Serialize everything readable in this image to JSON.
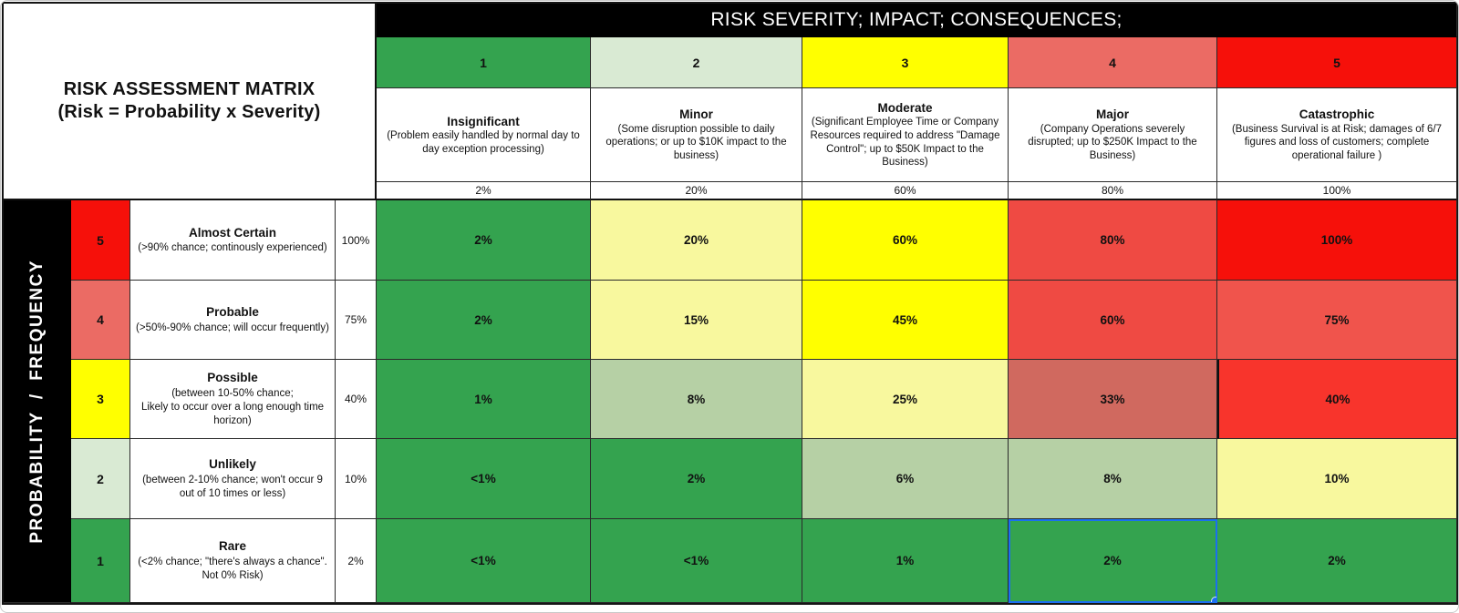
{
  "sheet": {
    "title_line1": "RISK ASSESSMENT MATRIX",
    "title_line2": "(Risk = Probability x Severity)",
    "severity_banner": "RISK SEVERITY; IMPACT; CONSEQUENCES;",
    "probability_banner": "PROBABILITY  /  FREQUENCY"
  },
  "colors": {
    "green": "#34a34f",
    "pale_green": "#d9ead3",
    "muted_green": "#b6d0a5",
    "light_yellow": "#f8f89e",
    "yellow": "#ffff00",
    "salmon": "#eb6b64",
    "medium_red": "#ef4a43",
    "dusty_red": "#d0695f",
    "bright_red": "#f6100a",
    "selection_blue": "#1b6ff0",
    "banner_black": "#000000"
  },
  "severity_columns": [
    {
      "number": "1",
      "header_color": "#34a34f",
      "name": "Insignificant",
      "description": "(Problem easily handled by normal day to day exception processing)",
      "percent": "2%"
    },
    {
      "number": "2",
      "header_color": "#d9ead3",
      "name": "Minor",
      "description": "(Some disruption possible to daily operations;  or up to $10K impact to the business)",
      "percent": "20%"
    },
    {
      "number": "3",
      "header_color": "#ffff00",
      "name": "Moderate",
      "description": "(Significant Employee Time or Company Resources required to address \"Damage Control\";  up to $50K Impact to the Business)",
      "percent": "60%"
    },
    {
      "number": "4",
      "header_color": "#eb6b64",
      "name": "Major",
      "description": "(Company Operations severely disrupted;  up to $250K Impact to the Business)",
      "percent": "80%"
    },
    {
      "number": "5",
      "header_color": "#f6100a",
      "name": "Catastrophic",
      "description": "(Business Survival is at Risk; damages of 6/7 figures and loss of customers;  complete operational failure )",
      "percent": "100%"
    }
  ],
  "probability_rows": [
    {
      "number": "5",
      "header_color": "#f6100a",
      "name": "Almost Certain",
      "description": "(>90% chance; continously experienced)",
      "percent": "100%",
      "cells": [
        {
          "value": "2%",
          "bg": "#34a34f"
        },
        {
          "value": "20%",
          "bg": "#f8f89e"
        },
        {
          "value": "60%",
          "bg": "#ffff00"
        },
        {
          "value": "80%",
          "bg": "#ef4a43"
        },
        {
          "value": "100%",
          "bg": "#f6100a"
        }
      ]
    },
    {
      "number": "4",
      "header_color": "#eb6b64",
      "name": "Probable",
      "description": "(>50%-90% chance; will occur frequently)",
      "percent": "75%",
      "cells": [
        {
          "value": "2%",
          "bg": "#34a34f"
        },
        {
          "value": "15%",
          "bg": "#f8f89e"
        },
        {
          "value": "45%",
          "bg": "#ffff00"
        },
        {
          "value": "60%",
          "bg": "#ef4a43"
        },
        {
          "value": "75%",
          "bg": "#f0544c"
        }
      ]
    },
    {
      "number": "3",
      "header_color": "#ffff00",
      "name": "Possible",
      "description": "(between 10-50% chance;\nLikely to occur over a long enough time horizon)",
      "percent": "40%",
      "cells": [
        {
          "value": "1%",
          "bg": "#34a34f"
        },
        {
          "value": "8%",
          "bg": "#b6d0a5"
        },
        {
          "value": "25%",
          "bg": "#f8f89e"
        },
        {
          "value": "33%",
          "bg": "#d0695f"
        },
        {
          "value": "40%",
          "bg": "#f8342c"
        }
      ]
    },
    {
      "number": "2",
      "header_color": "#d9ead3",
      "name": "Unlikely",
      "description": "(between 2-10% chance; won't occur 9 out of 10 times or less)",
      "percent": "10%",
      "cells": [
        {
          "value": "<1%",
          "bg": "#34a34f"
        },
        {
          "value": "2%",
          "bg": "#34a34f"
        },
        {
          "value": "6%",
          "bg": "#b6d0a5"
        },
        {
          "value": "8%",
          "bg": "#b6d0a5"
        },
        {
          "value": "10%",
          "bg": "#f8f89e"
        }
      ]
    },
    {
      "number": "1",
      "header_color": "#34a34f",
      "name": "Rare",
      "description": "(<2% chance;  \"there's always a chance\".  Not 0% Risk)",
      "percent": "2%",
      "cells": [
        {
          "value": "<1%",
          "bg": "#34a34f"
        },
        {
          "value": "<1%",
          "bg": "#34a34f"
        },
        {
          "value": "1%",
          "bg": "#34a34f"
        },
        {
          "value": "2%",
          "bg": "#34a34f",
          "selected": true
        },
        {
          "value": "2%",
          "bg": "#34a34f"
        }
      ]
    }
  ],
  "selection": {
    "probability_level": "1",
    "severity_level": "4",
    "value": "2%"
  }
}
